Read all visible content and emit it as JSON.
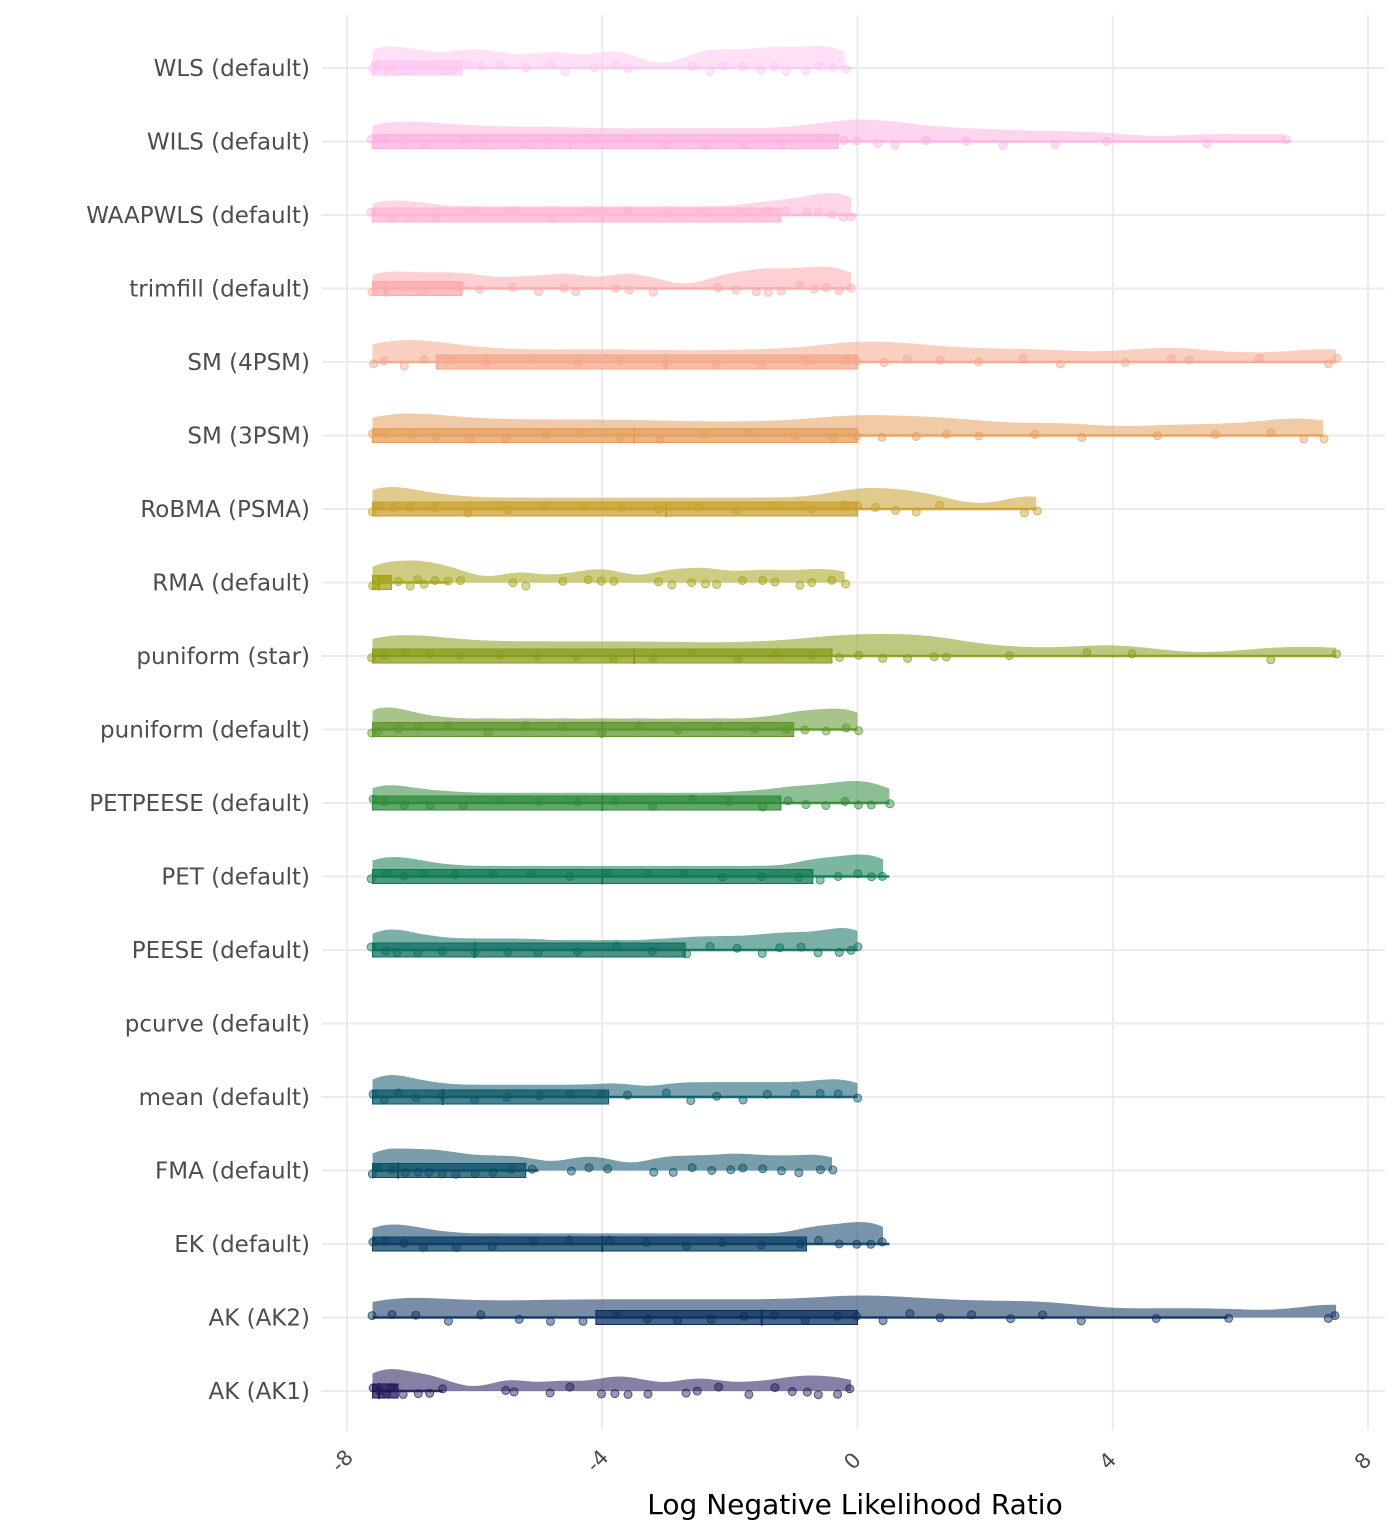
{
  "chart_data": {
    "type": "raincloud",
    "title": "",
    "xlabel": "Log Negative Likelihood Ratio",
    "ylabel": "",
    "xlim": [
      -8,
      8
    ],
    "x_ticks": [
      -8,
      -4,
      0,
      4,
      8
    ],
    "x_tick_labels": [
      "-8",
      "-4",
      "0",
      "4",
      "8"
    ],
    "grid": true,
    "legend": "none",
    "categories": [
      "WLS (default)",
      "WILS (default)",
      "WAAPWLS (default)",
      "trimfill (default)",
      "SM (4PSM)",
      "SM (3PSM)",
      "RoBMA (PSMA)",
      "RMA (default)",
      "puniform (star)",
      "puniform (default)",
      "PETPEESE (default)",
      "PET (default)",
      "PEESE (default)",
      "pcurve (default)",
      "mean (default)",
      "FMA (default)",
      "EK (default)",
      "AK (AK2)",
      "AK (AK1)"
    ],
    "series": [
      {
        "name": "WLS (default)",
        "color": "#FFC6F1",
        "q1": -7.6,
        "median": -7.4,
        "q3": -6.2,
        "whisker_low": -7.6,
        "whisker_high": -0.1,
        "points": [
          -7.6,
          -7.5,
          -7.3,
          -7.0,
          -6.8,
          -6.4,
          -6.1,
          -5.9,
          -5.6,
          -5.2,
          -4.8,
          -4.6,
          -4.1,
          -3.8,
          -3.6,
          -2.6,
          -2.3,
          -2.1,
          -1.8,
          -1.5,
          -1.3,
          -1.1,
          -0.8,
          -0.6,
          -0.4,
          -0.2
        ]
      },
      {
        "name": "WILS (default)",
        "color": "#FCB2E0",
        "q1": -7.6,
        "median": -4.5,
        "q3": -0.3,
        "whisker_low": -7.6,
        "whisker_high": 6.8,
        "points": [
          -7.6,
          -7.4,
          -7.1,
          -6.8,
          -6.2,
          -5.9,
          -5.2,
          -4.8,
          -4.2,
          -3.6,
          -3.0,
          -2.4,
          -1.8,
          -1.2,
          -0.6,
          -0.2,
          0.0,
          0.3,
          0.6,
          1.1,
          1.7,
          2.3,
          3.1,
          3.9,
          5.5,
          6.7
        ]
      },
      {
        "name": "WAAPWLS (default)",
        "color": "#FEB4D4",
        "q1": -7.6,
        "median": -4.0,
        "q3": -1.2,
        "whisker_low": -7.6,
        "whisker_high": 0.0,
        "points": [
          -7.6,
          -7.3,
          -7.0,
          -6.6,
          -6.0,
          -5.4,
          -4.8,
          -4.2,
          -3.6,
          -3.0,
          -2.4,
          -1.8,
          -1.4,
          -1.1,
          -0.8,
          -0.6,
          -0.4,
          -0.2,
          -0.1
        ]
      },
      {
        "name": "trimfill (default)",
        "color": "#FFAAAE",
        "q1": -7.6,
        "median": -7.4,
        "q3": -6.2,
        "whisker_low": -7.6,
        "whisker_high": -0.1,
        "points": [
          -7.6,
          -7.4,
          -7.1,
          -6.8,
          -6.5,
          -6.2,
          -5.9,
          -5.4,
          -5.0,
          -4.6,
          -4.4,
          -3.8,
          -3.6,
          -3.2,
          -2.2,
          -1.9,
          -1.6,
          -1.4,
          -1.2,
          -0.9,
          -0.7,
          -0.5,
          -0.3,
          -0.1
        ]
      },
      {
        "name": "SM (4PSM)",
        "color": "#F4A78C",
        "q1": -6.6,
        "median": -3.0,
        "q3": 0.0,
        "whisker_low": -7.6,
        "whisker_high": 7.5,
        "points": [
          -7.6,
          -7.4,
          -7.1,
          -6.8,
          -6.4,
          -5.8,
          -5.1,
          -4.4,
          -3.7,
          -3.0,
          -2.2,
          -1.5,
          -0.8,
          -0.2,
          0.0,
          0.4,
          0.8,
          1.3,
          1.9,
          2.6,
          3.2,
          4.2,
          4.9,
          5.2,
          6.3,
          7.4,
          7.5
        ]
      },
      {
        "name": "SM (3PSM)",
        "color": "#E59F5D",
        "q1": -7.6,
        "median": -3.5,
        "q3": 0.0,
        "whisker_low": -7.6,
        "whisker_high": 7.3,
        "points": [
          -7.6,
          -7.4,
          -7.0,
          -6.6,
          -6.1,
          -5.5,
          -4.9,
          -4.3,
          -3.7,
          -3.1,
          -2.4,
          -1.7,
          -1.0,
          -0.4,
          0.0,
          0.4,
          0.9,
          1.4,
          1.9,
          2.8,
          3.5,
          4.7,
          5.6,
          6.5,
          7.0,
          7.3
        ]
      },
      {
        "name": "RoBMA (PSMA)",
        "color": "#C9A02E",
        "q1": -7.6,
        "median": -3.0,
        "q3": 0.0,
        "whisker_low": -7.6,
        "whisker_high": 2.8,
        "points": [
          -7.6,
          -7.5,
          -7.3,
          -7.0,
          -6.6,
          -6.1,
          -5.5,
          -4.9,
          -4.3,
          -3.7,
          -3.1,
          -2.5,
          -1.9,
          -1.3,
          -0.7,
          -0.2,
          0.0,
          0.3,
          0.6,
          0.9,
          1.3,
          2.6,
          2.8
        ]
      },
      {
        "name": "RMA (default)",
        "color": "#A6A319",
        "q1": -7.6,
        "median": -7.5,
        "q3": -7.3,
        "whisker_low": -7.6,
        "whisker_high": -6.4,
        "points": [
          -7.6,
          -7.5,
          -7.4,
          -7.2,
          -7.0,
          -6.9,
          -6.8,
          -6.6,
          -6.4,
          -6.2,
          -5.4,
          -5.2,
          -4.6,
          -4.2,
          -4.0,
          -3.8,
          -3.1,
          -2.9,
          -2.6,
          -2.4,
          -2.2,
          -1.8,
          -1.5,
          -1.3,
          -0.9,
          -0.7,
          -0.4,
          -0.2
        ]
      },
      {
        "name": "puniform (star)",
        "color": "#8A9B1A",
        "q1": -7.6,
        "median": -3.5,
        "q3": -0.4,
        "whisker_low": -7.6,
        "whisker_high": 7.5,
        "points": [
          -7.6,
          -7.4,
          -7.1,
          -6.7,
          -6.2,
          -5.6,
          -5.0,
          -4.4,
          -3.8,
          -3.2,
          -2.6,
          -1.9,
          -1.3,
          -0.7,
          -0.3,
          0.0,
          0.4,
          0.8,
          1.2,
          1.4,
          2.4,
          3.6,
          4.3,
          6.5,
          7.5
        ]
      },
      {
        "name": "puniform (default)",
        "color": "#5E962C",
        "q1": -7.6,
        "median": -4.0,
        "q3": -1.0,
        "whisker_low": -7.6,
        "whisker_high": 0.0,
        "points": [
          -7.6,
          -7.5,
          -7.2,
          -6.9,
          -6.4,
          -5.8,
          -5.2,
          -4.6,
          -4.0,
          -3.4,
          -2.8,
          -2.2,
          -1.6,
          -1.1,
          -0.8,
          -0.5,
          -0.2,
          0.0
        ]
      },
      {
        "name": "PETPEESE (default)",
        "color": "#2E8A3A",
        "q1": -7.6,
        "median": -4.0,
        "q3": -1.2,
        "whisker_low": -7.6,
        "whisker_high": 0.5,
        "points": [
          -7.6,
          -7.4,
          -7.1,
          -6.7,
          -6.2,
          -5.6,
          -5.0,
          -4.4,
          -3.8,
          -3.2,
          -2.6,
          -2.0,
          -1.5,
          -1.1,
          -0.8,
          -0.5,
          -0.2,
          0.0,
          0.2,
          0.5
        ]
      },
      {
        "name": "PET (default)",
        "color": "#0E7A50",
        "q1": -7.6,
        "median": -4.0,
        "q3": -0.7,
        "whisker_low": -7.6,
        "whisker_high": 0.5,
        "points": [
          -7.6,
          -7.4,
          -7.1,
          -6.8,
          -6.3,
          -5.7,
          -5.1,
          -4.5,
          -3.9,
          -3.3,
          -2.7,
          -2.1,
          -1.5,
          -0.9,
          -0.6,
          -0.3,
          0.0,
          0.2,
          0.4
        ]
      },
      {
        "name": "PEESE (default)",
        "color": "#0D6F5E",
        "q1": -7.6,
        "median": -6.0,
        "q3": -2.7,
        "whisker_low": -7.6,
        "whisker_high": 0.0,
        "points": [
          -7.6,
          -7.4,
          -7.2,
          -6.9,
          -6.5,
          -6.0,
          -5.5,
          -5.0,
          -4.4,
          -3.8,
          -3.2,
          -2.7,
          -2.3,
          -1.9,
          -1.5,
          -1.2,
          -0.9,
          -0.6,
          -0.3,
          -0.1,
          0.0
        ]
      },
      {
        "name": "pcurve (default)",
        "color": "#0D6468",
        "q1": null,
        "median": null,
        "q3": null,
        "whisker_low": null,
        "whisker_high": null,
        "points": []
      },
      {
        "name": "mean (default)",
        "color": "#0B5869",
        "q1": -7.6,
        "median": -6.5,
        "q3": -3.9,
        "whisker_low": -7.6,
        "whisker_high": 0.0,
        "points": [
          -7.6,
          -7.4,
          -7.2,
          -6.9,
          -6.5,
          -6.0,
          -5.5,
          -5.0,
          -4.5,
          -4.0,
          -3.6,
          -3.0,
          -2.6,
          -2.2,
          -1.8,
          -1.4,
          -1.0,
          -0.6,
          -0.3,
          0.0
        ]
      },
      {
        "name": "FMA (default)",
        "color": "#094E66",
        "q1": -7.6,
        "median": -7.2,
        "q3": -5.2,
        "whisker_low": -7.6,
        "whisker_high": -5.0,
        "points": [
          -7.6,
          -7.5,
          -7.3,
          -7.1,
          -6.9,
          -6.7,
          -6.5,
          -6.3,
          -6.0,
          -5.7,
          -5.4,
          -5.1,
          -4.5,
          -4.2,
          -3.9,
          -3.2,
          -2.9,
          -2.6,
          -2.3,
          -2.0,
          -1.8,
          -1.5,
          -1.2,
          -0.9,
          -0.6,
          -0.4
        ]
      },
      {
        "name": "EK (default)",
        "color": "#0A3E64",
        "q1": -7.6,
        "median": -4.0,
        "q3": -0.8,
        "whisker_low": -7.6,
        "whisker_high": 0.5,
        "points": [
          -7.6,
          -7.4,
          -7.1,
          -6.8,
          -6.3,
          -5.7,
          -5.1,
          -4.5,
          -3.9,
          -3.3,
          -2.7,
          -2.1,
          -1.5,
          -0.9,
          -0.6,
          -0.3,
          0.0,
          0.2,
          0.4
        ]
      },
      {
        "name": "AK (AK2)",
        "color": "#0C305E",
        "q1": -4.1,
        "median": -1.5,
        "q3": 0.0,
        "whisker_low": -7.6,
        "whisker_high": 5.8,
        "points": [
          -7.6,
          -7.3,
          -6.9,
          -6.4,
          -5.9,
          -5.3,
          -4.8,
          -4.3,
          -3.8,
          -3.3,
          -2.8,
          -2.3,
          -1.8,
          -1.3,
          -0.8,
          -0.3,
          0.0,
          0.4,
          0.8,
          1.3,
          1.8,
          2.4,
          2.9,
          3.5,
          4.7,
          5.8,
          7.4,
          7.5
        ]
      },
      {
        "name": "AK (AK1)",
        "color": "#22185A",
        "q1": -7.6,
        "median": -7.5,
        "q3": -7.2,
        "whisker_low": -7.6,
        "whisker_high": -6.5,
        "points": [
          -7.6,
          -7.5,
          -7.4,
          -7.3,
          -7.1,
          -6.9,
          -6.7,
          -6.5,
          -5.5,
          -5.4,
          -4.8,
          -4.5,
          -4.0,
          -3.8,
          -3.6,
          -3.3,
          -2.7,
          -2.5,
          -2.2,
          -1.7,
          -1.3,
          -1.0,
          -0.8,
          -0.6,
          -0.3,
          -0.1
        ]
      }
    ]
  }
}
